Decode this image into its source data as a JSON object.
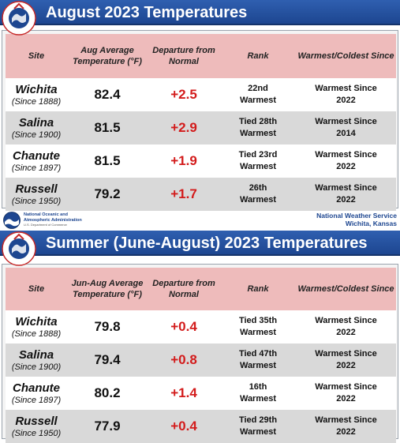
{
  "panels": [
    {
      "title": "August 2023 Temperatures",
      "headers": [
        "Site",
        "Aug Average Temperature (°F)",
        "Departure from Normal",
        "Rank",
        "Warmest/Coldest Since"
      ],
      "rows": [
        {
          "site": "Wichita",
          "since": "(Since 1888)",
          "temp": "82.4",
          "departure": "+2.5",
          "rank": [
            "22nd",
            "Warmest"
          ],
          "warmest": [
            "Warmest Since",
            "2022"
          ]
        },
        {
          "site": "Salina",
          "since": "(Since 1900)",
          "temp": "81.5",
          "departure": "+2.9",
          "rank": [
            "Tied 28th",
            "Warmest"
          ],
          "warmest": [
            "Warmest Since",
            "2014"
          ]
        },
        {
          "site": "Chanute",
          "since": "(Since 1897)",
          "temp": "81.5",
          "departure": "+1.9",
          "rank": [
            "Tied 23rd",
            "Warmest"
          ],
          "warmest": [
            "Warmest Since",
            "2022"
          ]
        },
        {
          "site": "Russell",
          "since": "(Since 1950)",
          "temp": "79.2",
          "departure": "+1.7",
          "rank": [
            "26th",
            "Warmest"
          ],
          "warmest": [
            "Warmest Since",
            "2022"
          ]
        }
      ]
    },
    {
      "title": "Summer (June-August) 2023 Temperatures",
      "headers": [
        "Site",
        "Jun-Aug Average Temperature (°F)",
        "Departure from Normal",
        "Rank",
        "Warmest/Coldest Since"
      ],
      "rows": [
        {
          "site": "Wichita",
          "since": "(Since 1888)",
          "temp": "79.8",
          "departure": "+0.4",
          "rank": [
            "Tied 35th",
            "Warmest"
          ],
          "warmest": [
            "Warmest Since",
            "2022"
          ]
        },
        {
          "site": "Salina",
          "since": "(Since 1900)",
          "temp": "79.4",
          "departure": "+0.8",
          "rank": [
            "Tied 47th",
            "Warmest"
          ],
          "warmest": [
            "Warmest Since",
            "2022"
          ]
        },
        {
          "site": "Chanute",
          "since": "(Since 1897)",
          "temp": "80.2",
          "departure": "+1.4",
          "rank": [
            "16th",
            "Warmest"
          ],
          "warmest": [
            "Warmest Since",
            "2022"
          ]
        },
        {
          "site": "Russell",
          "since": "(Since 1950)",
          "temp": "77.9",
          "departure": "+0.4",
          "rank": [
            "Tied 29th",
            "Warmest"
          ],
          "warmest": [
            "Warmest Since",
            "2022"
          ]
        }
      ]
    }
  ],
  "footer": {
    "noaa_line1": "National Oceanic and",
    "noaa_line2": "Atmospheric Administration",
    "noaa_line3": "U.S. Department of Commerce",
    "nws_line1": "National Weather Service",
    "nws_line2": "Wichita, Kansas"
  },
  "logo": {
    "nws_logo_text": "NATIONAL WEATHER SERVICE",
    "noaa_logo_text": "NOAA"
  },
  "colors": {
    "title_bar": "#1d4690",
    "header_bg": "#eebbbb",
    "departure": "#d31b1b",
    "alt_row": "#d9d9d9"
  },
  "icons": {
    "nws_logo": "nws-logo-icon",
    "noaa_logo": "noaa-logo-icon"
  }
}
